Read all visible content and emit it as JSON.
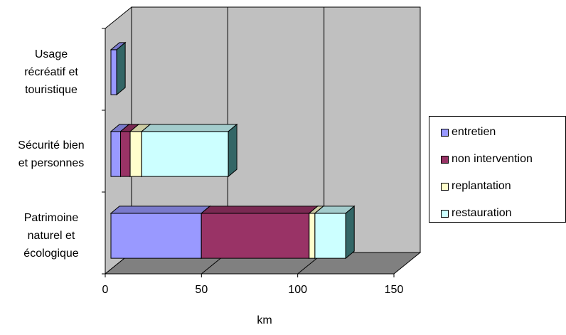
{
  "chart_data": {
    "type": "bar",
    "orientation": "horizontal",
    "stacked": true,
    "three_d": true,
    "categories": [
      "Usage récréatif et touristique",
      "Sécurité bien et personnes",
      "Patrimoine naturel et écologique"
    ],
    "category_lines": [
      [
        "Usage",
        "récréatif et",
        "touristique"
      ],
      [
        "Sécurité bien",
        "et personnes"
      ],
      [
        "Patrimoine",
        "naturel et",
        "écologique"
      ]
    ],
    "series": [
      {
        "name": "entretien",
        "color": "#9999ff",
        "values": [
          3,
          5,
          47
        ]
      },
      {
        "name": "non intervention",
        "color": "#993366",
        "values": [
          0,
          5,
          56
        ]
      },
      {
        "name": "replantation",
        "color": "#ffffcc",
        "values": [
          0,
          6,
          3
        ]
      },
      {
        "name": "restauration",
        "color": "#ccffff",
        "values": [
          0,
          45,
          16
        ]
      }
    ],
    "xlabel": "km",
    "ylabel": "",
    "xlim": [
      0,
      150
    ],
    "x_ticks": [
      "0",
      "50",
      "100",
      "150"
    ],
    "grid": true,
    "legend_position": "right",
    "colors": {
      "wall": "#c0c0c0",
      "floor": "#808080",
      "gridline": "#000000"
    }
  }
}
